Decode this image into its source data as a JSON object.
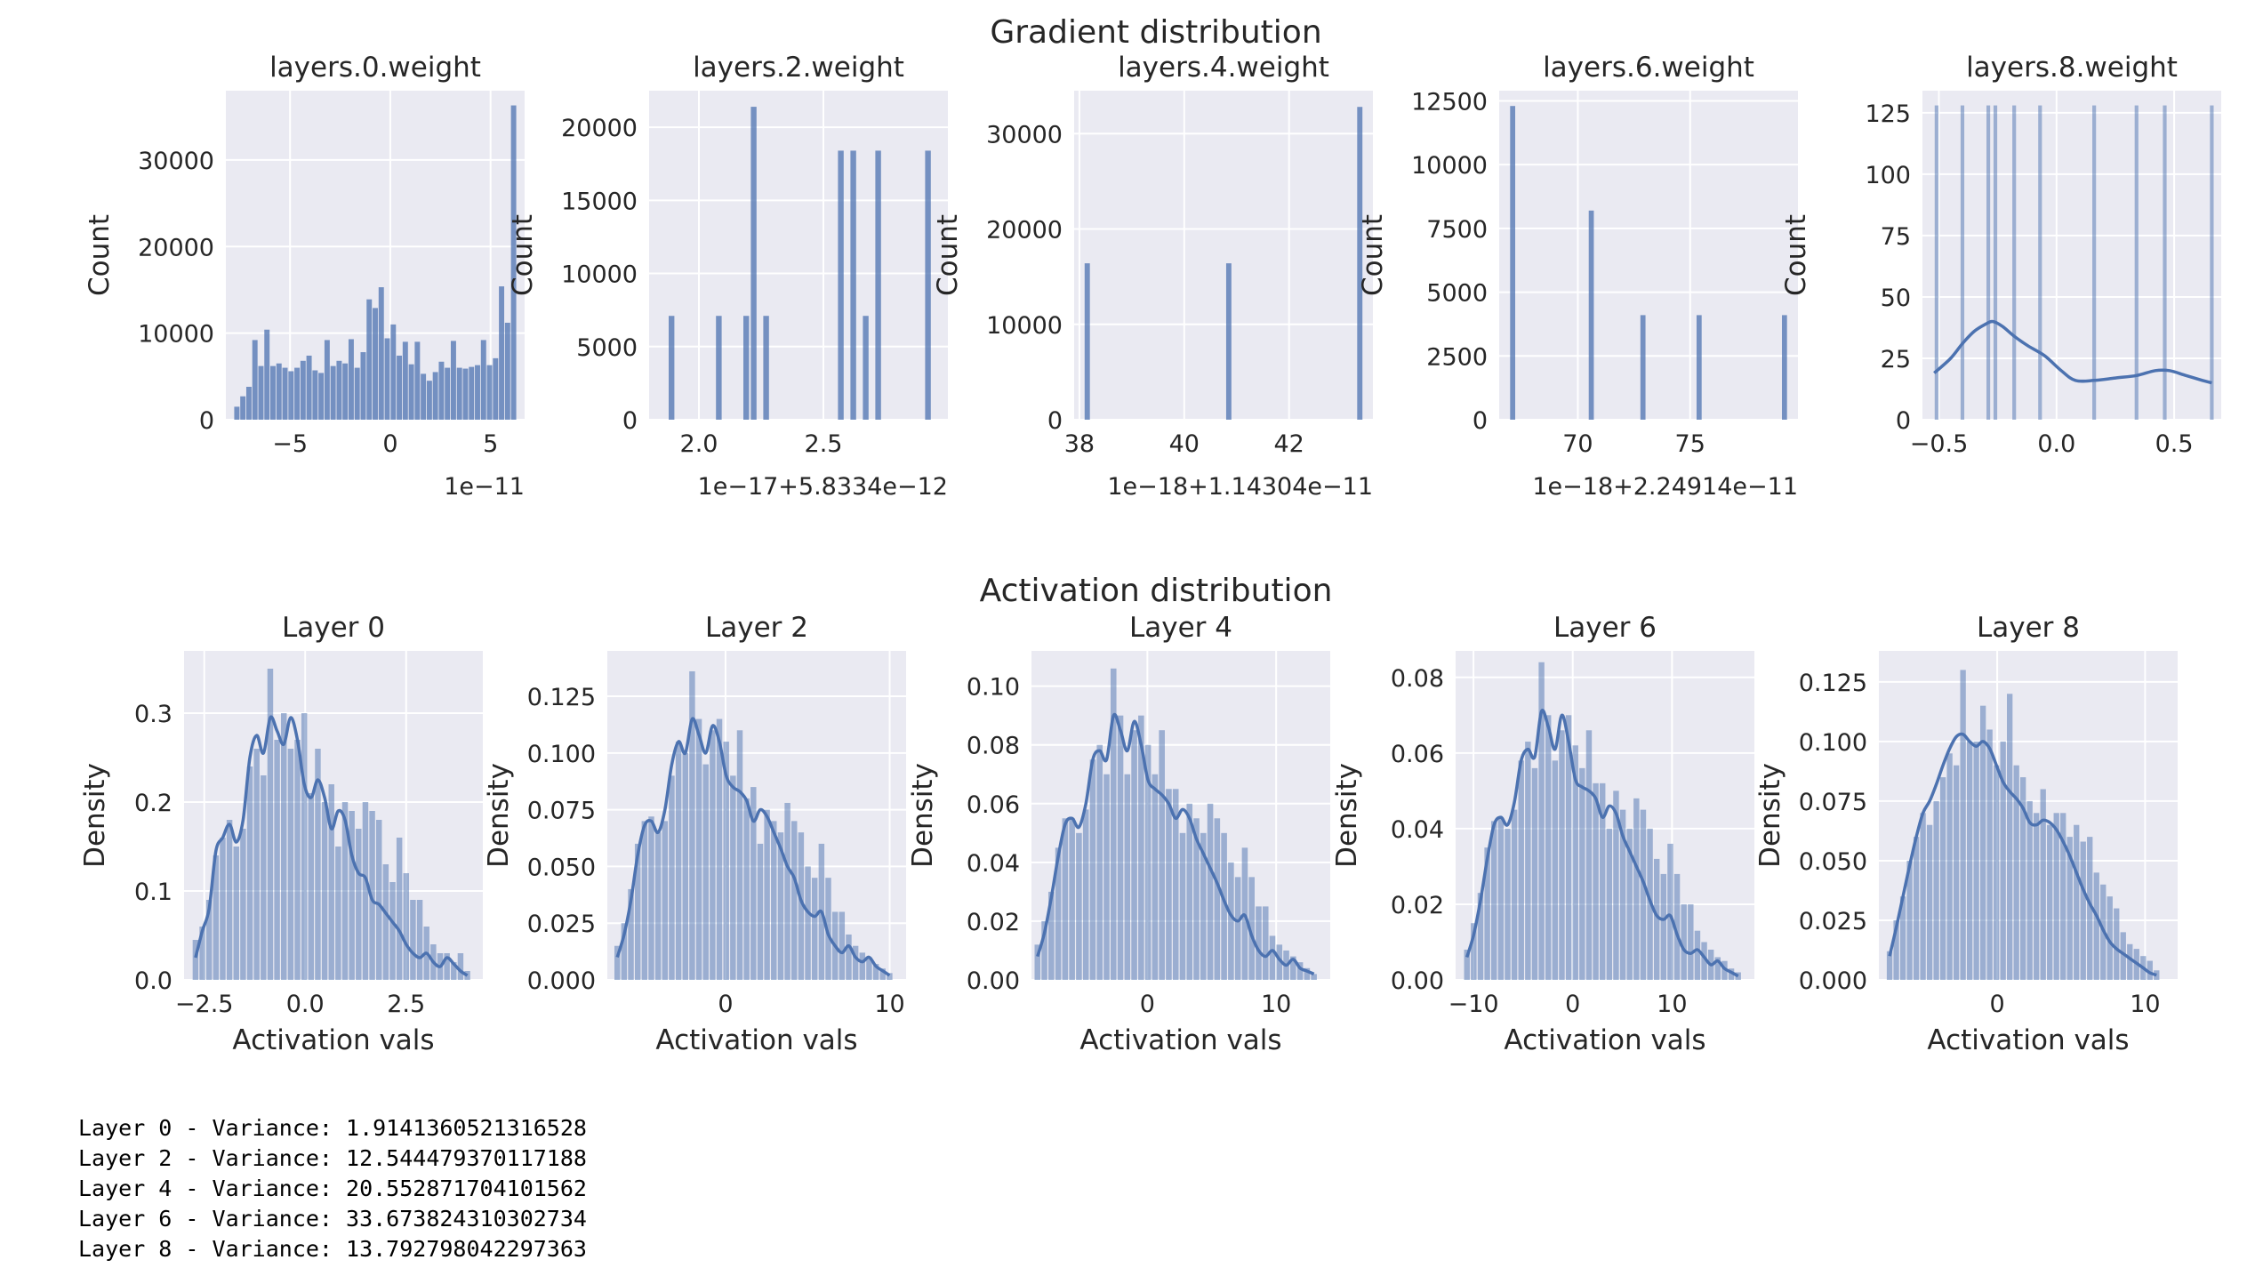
{
  "colors": {
    "panel_bg": "#eaeaf2",
    "grid": "#ffffff",
    "bar": "#4c72b0",
    "text": "#262626"
  },
  "chart_data": [
    {
      "type": "bar",
      "group": "gradient",
      "suptitle": "Gradient distribution",
      "title": "layers.0.weight",
      "ylabel": "Count",
      "xlabel": "",
      "xlim": [
        -8.2,
        6.7
      ],
      "ylim": [
        0,
        38000
      ],
      "xticks": [
        -5,
        0,
        5
      ],
      "xtick_labels": [
        "−5",
        "0",
        "5"
      ],
      "yticks": [
        0,
        10000,
        20000,
        30000
      ],
      "ytick_labels": [
        "0",
        "10000",
        "20000",
        "30000"
      ],
      "x_offset_label": "1e−11",
      "bar_width": 0.29,
      "x": [
        -7.65,
        -7.35,
        -7.05,
        -6.75,
        -6.45,
        -6.15,
        -5.85,
        -5.55,
        -5.25,
        -4.95,
        -4.65,
        -4.35,
        -4.05,
        -3.75,
        -3.45,
        -3.15,
        -2.85,
        -2.55,
        -2.25,
        -1.95,
        -1.65,
        -1.35,
        -1.05,
        -0.75,
        -0.45,
        -0.15,
        0.15,
        0.45,
        0.75,
        1.05,
        1.35,
        1.65,
        1.95,
        2.25,
        2.55,
        2.85,
        3.15,
        3.45,
        3.75,
        4.05,
        4.35,
        4.65,
        4.95,
        5.25,
        5.55,
        5.85,
        6.15
      ],
      "values": [
        1500,
        2700,
        3800,
        9200,
        6200,
        10400,
        6200,
        6500,
        6000,
        5600,
        6000,
        6800,
        7400,
        5700,
        5400,
        9200,
        6200,
        6800,
        6500,
        9300,
        6000,
        7800,
        13900,
        12900,
        15300,
        9400,
        11000,
        7400,
        9000,
        6400,
        9000,
        5300,
        4500,
        5500,
        6700,
        6000,
        9100,
        6000,
        5900,
        6100,
        6300,
        9200,
        6300,
        7100,
        15400,
        11200,
        36300
      ]
    },
    {
      "type": "bar",
      "group": "gradient",
      "title": "layers.2.weight",
      "ylabel": "Count",
      "xlabel": "",
      "xlim": [
        1.8,
        3.0
      ],
      "ylim": [
        0,
        22500
      ],
      "xticks": [
        2.0,
        2.5
      ],
      "xtick_labels": [
        "2.0",
        "2.5"
      ],
      "yticks": [
        0,
        5000,
        10000,
        15000,
        20000
      ],
      "ytick_labels": [
        "0",
        "5000",
        "10000",
        "15000",
        "20000"
      ],
      "x_offset_label": "1e−17+5.8334e−12",
      "bar_width": 0.025,
      "x": [
        1.89,
        2.08,
        2.19,
        2.22,
        2.27,
        2.57,
        2.62,
        2.67,
        2.72,
        2.92
      ],
      "values": [
        7100,
        7100,
        7100,
        21400,
        7100,
        18400,
        18400,
        7100,
        18400,
        18400
      ]
    },
    {
      "type": "bar",
      "group": "gradient",
      "title": "layers.4.weight",
      "ylabel": "Count",
      "xlabel": "",
      "xlim": [
        37.9,
        43.6
      ],
      "ylim": [
        0,
        34500
      ],
      "xticks": [
        38,
        40,
        42
      ],
      "xtick_labels": [
        "38",
        "40",
        "42"
      ],
      "yticks": [
        0,
        10000,
        20000,
        30000
      ],
      "ytick_labels": [
        "0",
        "10000",
        "20000",
        "30000"
      ],
      "x_offset_label": "1e−18+1.14304e−11",
      "bar_width": 0.11,
      "x": [
        38.15,
        40.85,
        43.35
      ],
      "values": [
        16400,
        16400,
        32800
      ]
    },
    {
      "type": "bar",
      "group": "gradient",
      "title": "layers.6.weight",
      "ylabel": "Count",
      "xlabel": "",
      "xlim": [
        66.5,
        79.8
      ],
      "ylim": [
        0,
        12900
      ],
      "xticks": [
        70,
        75
      ],
      "xtick_labels": [
        "70",
        "75"
      ],
      "yticks": [
        0,
        2500,
        5000,
        7500,
        10000,
        12500
      ],
      "ytick_labels": [
        "0",
        "2500",
        "5000",
        "7500",
        "10000",
        "12500"
      ],
      "x_offset_label": "1e−18+2.24914e−11",
      "bar_width": 0.25,
      "x": [
        67.1,
        70.6,
        72.9,
        75.4,
        79.2
      ],
      "values": [
        12300,
        8200,
        4100,
        4100,
        4100
      ]
    },
    {
      "type": "bar",
      "group": "gradient",
      "title": "layers.8.weight",
      "ylabel": "Count",
      "xlabel": "",
      "xlim": [
        -0.57,
        0.7
      ],
      "ylim": [
        0,
        134
      ],
      "xticks": [
        -0.5,
        0.0,
        0.5
      ],
      "xtick_labels": [
        "−0.5",
        "0.0",
        "0.5"
      ],
      "yticks": [
        0,
        25,
        50,
        75,
        100,
        125
      ],
      "ytick_labels": [
        "0",
        "25",
        "50",
        "75",
        "100",
        "125"
      ],
      "bar_width": 0.018,
      "x": [
        -0.51,
        -0.4,
        -0.29,
        -0.26,
        -0.18,
        -0.07,
        0.16,
        0.34,
        0.46,
        0.66
      ],
      "values": [
        128,
        128,
        128,
        128,
        128,
        128,
        128,
        128,
        128,
        128
      ],
      "kde": {
        "x": [
          -0.52,
          -0.45,
          -0.4,
          -0.35,
          -0.3,
          -0.27,
          -0.23,
          -0.18,
          -0.12,
          -0.05,
          0.02,
          0.08,
          0.16,
          0.25,
          0.34,
          0.42,
          0.48,
          0.55,
          0.62,
          0.66
        ],
        "y": [
          19,
          25,
          31,
          36,
          39,
          40,
          38,
          34,
          30,
          26,
          20,
          16,
          16,
          17,
          18,
          20,
          20,
          18,
          16,
          15
        ]
      }
    },
    {
      "type": "bar",
      "group": "activation",
      "suptitle": "Activation distribution",
      "title": "Layer 0",
      "ylabel": "Density",
      "xlabel": "Activation vals",
      "xlim": [
        -3.0,
        4.4
      ],
      "ylim": [
        0,
        0.37
      ],
      "xticks": [
        -2.5,
        0.0,
        2.5
      ],
      "xtick_labels": [
        "−2.5",
        "0.0",
        "2.5"
      ],
      "yticks": [
        0.0,
        0.1,
        0.2,
        0.3
      ],
      "ytick_labels": [
        "0.0",
        "0.1",
        "0.2",
        "0.3"
      ],
      "range": [
        -2.8,
        4.1
      ],
      "values": [
        0.045,
        0.06,
        0.09,
        0.14,
        0.16,
        0.18,
        0.15,
        0.17,
        0.24,
        0.26,
        0.23,
        0.35,
        0.27,
        0.3,
        0.26,
        0.27,
        0.3,
        0.21,
        0.26,
        0.2,
        0.22,
        0.15,
        0.2,
        0.19,
        0.17,
        0.2,
        0.19,
        0.18,
        0.13,
        0.11,
        0.16,
        0.12,
        0.09,
        0.09,
        0.06,
        0.04,
        0.03,
        0.03,
        0.02,
        0.03,
        0.01
      ],
      "kde_values": [
        0.025,
        0.055,
        0.08,
        0.145,
        0.16,
        0.175,
        0.155,
        0.18,
        0.25,
        0.275,
        0.255,
        0.295,
        0.28,
        0.265,
        0.295,
        0.27,
        0.22,
        0.205,
        0.225,
        0.205,
        0.17,
        0.19,
        0.18,
        0.14,
        0.12,
        0.115,
        0.09,
        0.085,
        0.075,
        0.065,
        0.055,
        0.04,
        0.03,
        0.025,
        0.03,
        0.02,
        0.015,
        0.025,
        0.018,
        0.01,
        0.005
      ]
    },
    {
      "type": "bar",
      "group": "activation",
      "title": "Layer 2",
      "ylabel": "Density",
      "xlabel": "Activation vals",
      "xlim": [
        -7.2,
        11.0
      ],
      "ylim": [
        0,
        0.145
      ],
      "xticks": [
        0,
        10
      ],
      "xtick_labels": [
        "0",
        "10"
      ],
      "yticks": [
        0.0,
        0.025,
        0.05,
        0.075,
        0.1,
        0.125
      ],
      "ytick_labels": [
        "0.000",
        "0.025",
        "0.050",
        "0.075",
        "0.100",
        "0.125"
      ],
      "range": [
        -6.8,
        10.2
      ],
      "values": [
        0.015,
        0.025,
        0.04,
        0.06,
        0.07,
        0.072,
        0.065,
        0.07,
        0.09,
        0.105,
        0.1,
        0.136,
        0.115,
        0.095,
        0.11,
        0.115,
        0.105,
        0.09,
        0.11,
        0.08,
        0.085,
        0.06,
        0.075,
        0.07,
        0.065,
        0.078,
        0.07,
        0.065,
        0.05,
        0.045,
        0.06,
        0.045,
        0.03,
        0.03,
        0.02,
        0.015,
        0.012,
        0.01,
        0.007,
        0.005,
        0.003
      ],
      "kde_values": [
        0.01,
        0.02,
        0.035,
        0.055,
        0.068,
        0.07,
        0.065,
        0.075,
        0.095,
        0.105,
        0.1,
        0.115,
        0.108,
        0.1,
        0.112,
        0.105,
        0.09,
        0.085,
        0.083,
        0.079,
        0.07,
        0.075,
        0.072,
        0.065,
        0.058,
        0.05,
        0.045,
        0.035,
        0.03,
        0.028,
        0.03,
        0.02,
        0.015,
        0.012,
        0.015,
        0.01,
        0.008,
        0.01,
        0.006,
        0.004,
        0.002
      ]
    },
    {
      "type": "bar",
      "group": "activation",
      "title": "Layer 4",
      "ylabel": "Density",
      "xlabel": "Activation vals",
      "xlim": [
        -9.0,
        14.2
      ],
      "ylim": [
        0,
        0.112
      ],
      "xticks": [
        0,
        10
      ],
      "xtick_labels": [
        "0",
        "10"
      ],
      "yticks": [
        0.0,
        0.02,
        0.04,
        0.06,
        0.08,
        0.1
      ],
      "ytick_labels": [
        "0.00",
        "0.02",
        "0.04",
        "0.06",
        "0.08",
        "0.10"
      ],
      "range": [
        -8.8,
        13.2
      ],
      "values": [
        0.012,
        0.02,
        0.03,
        0.045,
        0.055,
        0.055,
        0.05,
        0.058,
        0.075,
        0.08,
        0.07,
        0.106,
        0.09,
        0.07,
        0.085,
        0.09,
        0.08,
        0.07,
        0.085,
        0.065,
        0.065,
        0.05,
        0.06,
        0.055,
        0.05,
        0.06,
        0.055,
        0.05,
        0.04,
        0.035,
        0.045,
        0.035,
        0.025,
        0.025,
        0.015,
        0.012,
        0.01,
        0.008,
        0.006,
        0.004,
        0.002
      ],
      "kde_values": [
        0.008,
        0.016,
        0.028,
        0.042,
        0.053,
        0.055,
        0.052,
        0.06,
        0.075,
        0.078,
        0.075,
        0.09,
        0.085,
        0.078,
        0.088,
        0.08,
        0.068,
        0.065,
        0.063,
        0.06,
        0.055,
        0.058,
        0.055,
        0.048,
        0.043,
        0.038,
        0.033,
        0.027,
        0.022,
        0.02,
        0.022,
        0.015,
        0.01,
        0.008,
        0.01,
        0.007,
        0.005,
        0.007,
        0.004,
        0.003,
        0.002
      ]
    },
    {
      "type": "bar",
      "group": "activation",
      "title": "Layer 6",
      "ylabel": "Density",
      "xlabel": "Activation vals",
      "xlim": [
        -11.8,
        18.3
      ],
      "ylim": [
        0,
        0.087
      ],
      "xticks": [
        -10,
        0,
        10
      ],
      "xtick_labels": [
        "−10",
        "0",
        "10"
      ],
      "yticks": [
        0.0,
        0.02,
        0.04,
        0.06,
        0.08
      ],
      "ytick_labels": [
        "0.00",
        "0.02",
        "0.04",
        "0.06",
        "0.08"
      ],
      "range": [
        -11.0,
        17.0
      ],
      "values": [
        0.008,
        0.015,
        0.023,
        0.035,
        0.042,
        0.043,
        0.04,
        0.045,
        0.058,
        0.063,
        0.056,
        0.084,
        0.07,
        0.058,
        0.066,
        0.07,
        0.062,
        0.056,
        0.066,
        0.052,
        0.052,
        0.04,
        0.05,
        0.045,
        0.04,
        0.048,
        0.045,
        0.04,
        0.032,
        0.028,
        0.036,
        0.028,
        0.02,
        0.02,
        0.013,
        0.01,
        0.008,
        0.006,
        0.005,
        0.003,
        0.002
      ],
      "kde_values": [
        0.006,
        0.012,
        0.021,
        0.032,
        0.041,
        0.043,
        0.041,
        0.047,
        0.058,
        0.061,
        0.059,
        0.071,
        0.067,
        0.061,
        0.07,
        0.063,
        0.053,
        0.051,
        0.05,
        0.048,
        0.043,
        0.046,
        0.044,
        0.038,
        0.034,
        0.03,
        0.026,
        0.021,
        0.017,
        0.016,
        0.017,
        0.012,
        0.008,
        0.007,
        0.008,
        0.006,
        0.004,
        0.005,
        0.003,
        0.002,
        0.001
      ]
    },
    {
      "type": "bar",
      "group": "activation",
      "title": "Layer 8",
      "ylabel": "Density",
      "xlabel": "Activation vals",
      "xlim": [
        -8.0,
        12.2
      ],
      "ylim": [
        0,
        0.138
      ],
      "xticks": [
        0,
        10
      ],
      "xtick_labels": [
        "0",
        "10"
      ],
      "yticks": [
        0.0,
        0.025,
        0.05,
        0.075,
        0.1,
        0.125
      ],
      "ytick_labels": [
        "0.000",
        "0.025",
        "0.050",
        "0.075",
        "0.100",
        "0.125"
      ],
      "range": [
        -7.5,
        11.0
      ],
      "values": [
        0.012,
        0.025,
        0.035,
        0.05,
        0.06,
        0.07,
        0.065,
        0.075,
        0.085,
        0.095,
        0.09,
        0.13,
        0.1,
        0.1,
        0.115,
        0.105,
        0.09,
        0.1,
        0.12,
        0.09,
        0.085,
        0.075,
        0.07,
        0.08,
        0.065,
        0.07,
        0.07,
        0.06,
        0.065,
        0.058,
        0.06,
        0.045,
        0.04,
        0.035,
        0.03,
        0.02,
        0.015,
        0.013,
        0.01,
        0.008,
        0.004
      ],
      "kde_values": [
        0.01,
        0.022,
        0.035,
        0.048,
        0.06,
        0.07,
        0.075,
        0.082,
        0.09,
        0.097,
        0.102,
        0.103,
        0.1,
        0.098,
        0.1,
        0.097,
        0.09,
        0.083,
        0.079,
        0.076,
        0.072,
        0.066,
        0.065,
        0.067,
        0.066,
        0.063,
        0.058,
        0.052,
        0.045,
        0.038,
        0.032,
        0.027,
        0.021,
        0.016,
        0.013,
        0.011,
        0.009,
        0.007,
        0.005,
        0.003,
        0.002
      ]
    }
  ],
  "variance_log": [
    "Layer 0 - Variance: 1.9141360521316528",
    "Layer 2 - Variance: 12.544479370117188",
    "Layer 4 - Variance: 20.552871704101562",
    "Layer 6 - Variance: 33.673824310302734",
    "Layer 8 - Variance: 13.792798042297363"
  ]
}
